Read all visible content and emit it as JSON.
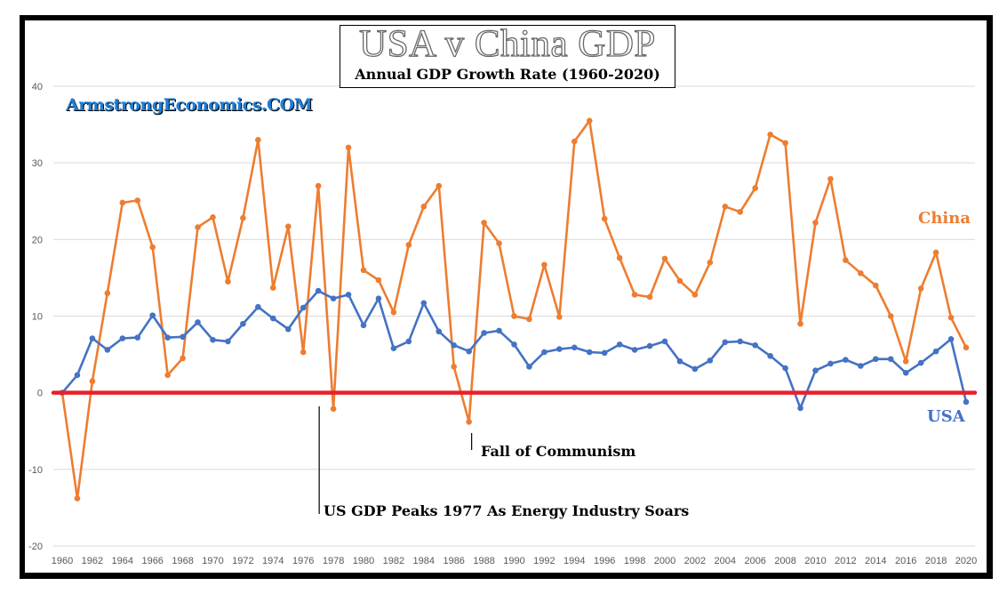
{
  "chart_data": {
    "type": "line",
    "title": "USA v China GDP",
    "subtitle": "Annual GDP Growth Rate (1960-2020)",
    "watermark": "ArmstrongEconomics.COM",
    "xlabel": "",
    "ylabel": "",
    "ylim": [
      -20,
      40
    ],
    "yticks": [
      40,
      30,
      20,
      10,
      0,
      -10,
      -20
    ],
    "xlim": [
      1960,
      2020
    ],
    "xticks": [
      1960,
      1962,
      1964,
      1966,
      1968,
      1970,
      1972,
      1974,
      1976,
      1978,
      1980,
      1982,
      1984,
      1986,
      1988,
      1990,
      1992,
      1994,
      1996,
      1998,
      2000,
      2002,
      2004,
      2006,
      2008,
      2010,
      2012,
      2014,
      2016,
      2018,
      2020
    ],
    "grid": true,
    "legend": "inline-right",
    "x": [
      1960,
      1961,
      1962,
      1963,
      1964,
      1965,
      1966,
      1967,
      1968,
      1969,
      1970,
      1971,
      1972,
      1973,
      1974,
      1975,
      1976,
      1977,
      1978,
      1979,
      1980,
      1981,
      1982,
      1983,
      1984,
      1985,
      1986,
      1987,
      1988,
      1989,
      1990,
      1991,
      1992,
      1993,
      1994,
      1995,
      1996,
      1997,
      1998,
      1999,
      2000,
      2001,
      2002,
      2003,
      2004,
      2005,
      2006,
      2007,
      2008,
      2009,
      2010,
      2011,
      2012,
      2013,
      2014,
      2015,
      2016,
      2017,
      2018,
      2019,
      2020
    ],
    "series": [
      {
        "name": "China",
        "color": "#ed7d31",
        "values": [
          0,
          -13.8,
          1.5,
          13,
          24.8,
          25.1,
          19,
          2.3,
          4.5,
          21.6,
          22.9,
          14.5,
          22.8,
          33,
          13.7,
          21.7,
          5.3,
          27,
          -2.1,
          32,
          16,
          14.7,
          10.5,
          19.3,
          24.3,
          27,
          3.4,
          -3.8,
          22.2,
          19.5,
          10,
          9.6,
          16.7,
          9.9,
          32.8,
          35.5,
          22.7,
          17.6,
          12.8,
          12.5,
          17.5,
          14.6,
          12.8,
          17,
          24.3,
          23.6,
          26.7,
          33.7,
          32.6,
          9,
          22.2,
          27.9,
          17.3,
          15.6,
          14,
          10,
          4.1,
          13.6,
          18.3,
          9.8,
          5.9
        ]
      },
      {
        "name": "USA",
        "color": "#4472c4",
        "values": [
          0,
          2.3,
          7.1,
          5.6,
          7.1,
          7.2,
          10.1,
          7.2,
          7.3,
          9.2,
          6.9,
          6.7,
          9,
          11.2,
          9.7,
          8.3,
          11.1,
          13.3,
          12.3,
          12.8,
          8.8,
          12.3,
          5.8,
          6.7,
          11.7,
          8,
          6.2,
          5.4,
          7.8,
          8.1,
          6.3,
          3.4,
          5.3,
          5.7,
          5.9,
          5.3,
          5.2,
          6.3,
          5.6,
          6.1,
          6.7,
          4.1,
          3.1,
          4.2,
          6.6,
          6.7,
          6.2,
          4.8,
          3.2,
          -2,
          2.9,
          3.8,
          4.3,
          3.5,
          4.4,
          4.4,
          2.6,
          3.9,
          5.4,
          7,
          -1.2
        ]
      }
    ],
    "zero_line_color": "#e8202a",
    "annotations": [
      {
        "text": "Fall of Communism",
        "year": 1987
      },
      {
        "text": "US GDP Peaks 1977 As Energy Industry Soars",
        "year": 1977
      }
    ]
  }
}
